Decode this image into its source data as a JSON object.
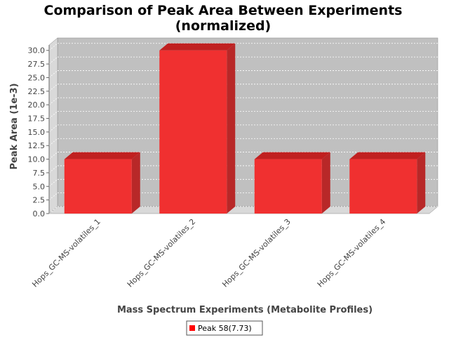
{
  "chart_data": {
    "type": "bar",
    "title_line1": "Comparison of Peak Area Between Experiments",
    "title_line2": "(normalized)",
    "xlabel": "Mass Spectrum Experiments (Metabolite Profiles)",
    "ylabel": "Peak Area (1e-3)",
    "categories": [
      "Hops_GC-MS-volatiles_1",
      "Hops_GC-MS-volatiles_2",
      "Hops_GC-MS-volatiles_3",
      "Hops_GC-MS-volatiles_4"
    ],
    "series": [
      {
        "name": "Peak 58(7.73)",
        "values": [
          10.0,
          30.0,
          10.0,
          10.0
        ]
      }
    ],
    "ylim": [
      0,
      31.0
    ],
    "yticks": [
      "0.0",
      "2.5",
      "5.0",
      "7.5",
      "10.0",
      "12.5",
      "15.0",
      "17.5",
      "20.0",
      "22.5",
      "25.0",
      "27.5",
      "30.0"
    ],
    "grid": true,
    "legend_position": "bottom-center",
    "colors": {
      "bar_front": "#f03030",
      "bar_top": "#c02020",
      "bar_side": "#b82828",
      "plot_bg": "#c0c0c0",
      "wall_left": "#d9d9d9",
      "floor": "#d9d9d9",
      "legend_swatch": "#ff0000"
    }
  }
}
